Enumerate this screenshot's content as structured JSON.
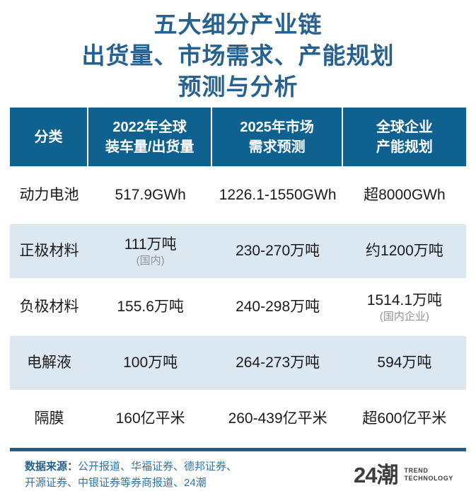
{
  "title": {
    "line1": "五大细分产业链",
    "line2": "出货量、市场需求、产能规划",
    "line3": "预测与分析"
  },
  "colors": {
    "title_blue": "#27618f",
    "header_bg": "#0f6190",
    "row_alt_bg": "#dce8f1",
    "divider_blue": "#1e5d8c",
    "note_gray": "#8f9499",
    "logo_gray": "#3d3d3d"
  },
  "table": {
    "headers": [
      {
        "line1": "分类",
        "line2": ""
      },
      {
        "line1": "2022年全球",
        "line2": "装车量/出货量"
      },
      {
        "line1": "2025年市场",
        "line2": "需求预测"
      },
      {
        "line1": "全球企业",
        "line2": "产能规划"
      }
    ],
    "rows": [
      {
        "category": "动力电池",
        "shipment": "517.9GWh",
        "shipment_note": "",
        "demand": "1226.1-1550GWh",
        "capacity": "超8000GWh",
        "capacity_note": ""
      },
      {
        "category": "正极材料",
        "shipment": "111万吨",
        "shipment_note": "(国内)",
        "demand": "230-270万吨",
        "capacity": "约1200万吨",
        "capacity_note": ""
      },
      {
        "category": "负极材料",
        "shipment": "155.6万吨",
        "shipment_note": "",
        "demand": "240-298万吨",
        "capacity": "1514.1万吨",
        "capacity_note": "(国内企业)"
      },
      {
        "category": "电解液",
        "shipment": "100万吨",
        "shipment_note": "",
        "demand": "264-273万吨",
        "capacity": "594万吨",
        "capacity_note": ""
      },
      {
        "category": "隔膜",
        "shipment": "160亿平米",
        "shipment_note": "",
        "demand": "260-439亿平米",
        "capacity": "超600亿平米",
        "capacity_note": ""
      }
    ]
  },
  "footer": {
    "source_label": "数据来源：",
    "source_line1": "公开报道、华福证券、德邦证券、",
    "source_line2": "开源证券、中银证券等券商报道、24潮",
    "logo_text": "24潮",
    "logo_sub1": "TREND",
    "logo_sub2": "TECHNOLOGY"
  },
  "chart_data": {
    "type": "table",
    "title": "五大细分产业链 出货量、市场需求、产能规划 预测与分析",
    "columns": [
      "分类",
      "2022年全球装车量/出货量",
      "2025年市场需求预测",
      "全球企业产能规划"
    ],
    "rows": [
      [
        "动力电池",
        "517.9GWh",
        "1226.1-1550GWh",
        "超8000GWh"
      ],
      [
        "正极材料",
        "111万吨(国内)",
        "230-270万吨",
        "约1200万吨"
      ],
      [
        "负极材料",
        "155.6万吨",
        "240-298万吨",
        "1514.1万吨(国内企业)"
      ],
      [
        "电解液",
        "100万吨",
        "264-273万吨",
        "594万吨"
      ],
      [
        "隔膜",
        "160亿平米",
        "260-439亿平米",
        "超600亿平米"
      ]
    ],
    "source": "数据来源：公开报道、华福证券、德邦证券、开源证券、中银证券等券商报道、24潮"
  }
}
